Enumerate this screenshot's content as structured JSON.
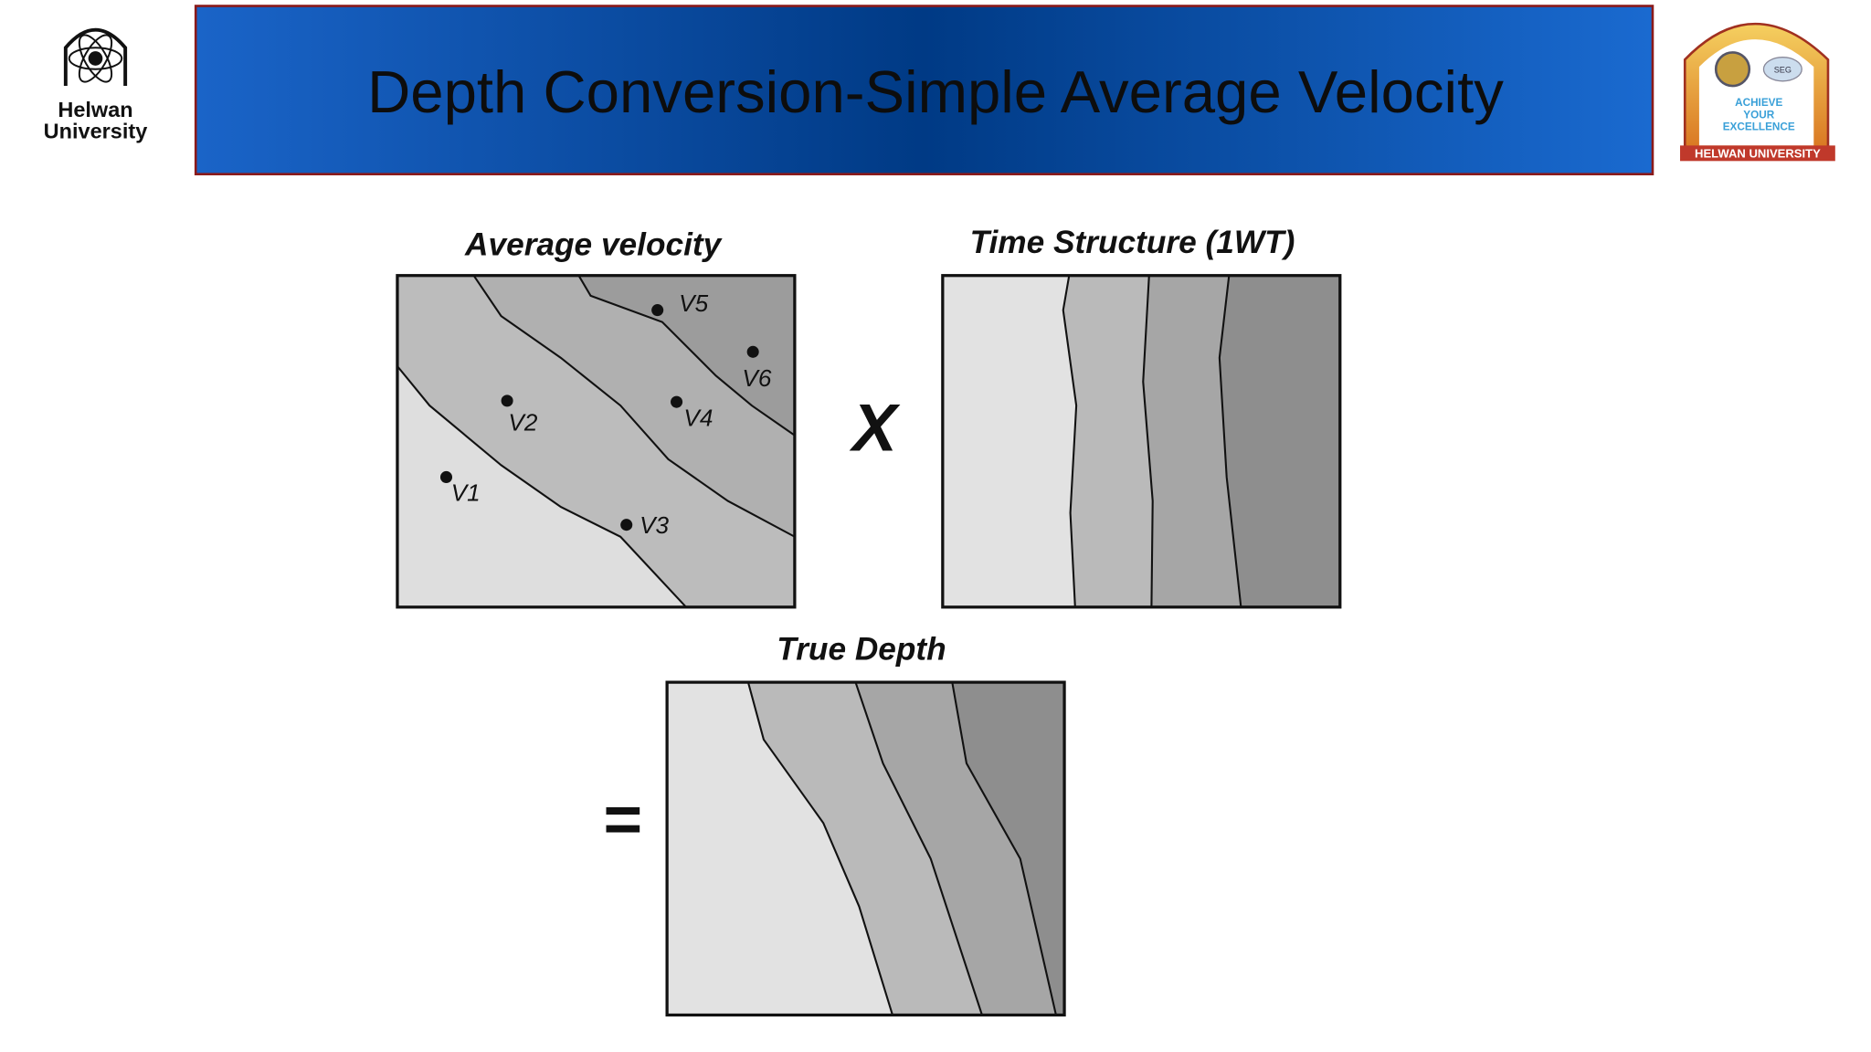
{
  "header": {
    "title": "Depth Conversion-Simple Average Velocity",
    "left_logo": {
      "line1": "Helwan",
      "line2": "University"
    },
    "right_logo": {
      "line1": "ACHIEVE",
      "line2": "YOUR",
      "line3": "EXCELLENCE",
      "footer": "HELWAN UNIVERSITY",
      "badge": "SEG"
    }
  },
  "panels": {
    "average_velocity": {
      "title": "Average velocity",
      "points": [
        "V1",
        "V2",
        "V3",
        "V4",
        "V5",
        "V6"
      ]
    },
    "time_structure": {
      "title": "Time Structure (1WT)"
    },
    "true_depth": {
      "title": "True Depth"
    }
  },
  "operators": {
    "multiply": "X",
    "equals": "="
  }
}
